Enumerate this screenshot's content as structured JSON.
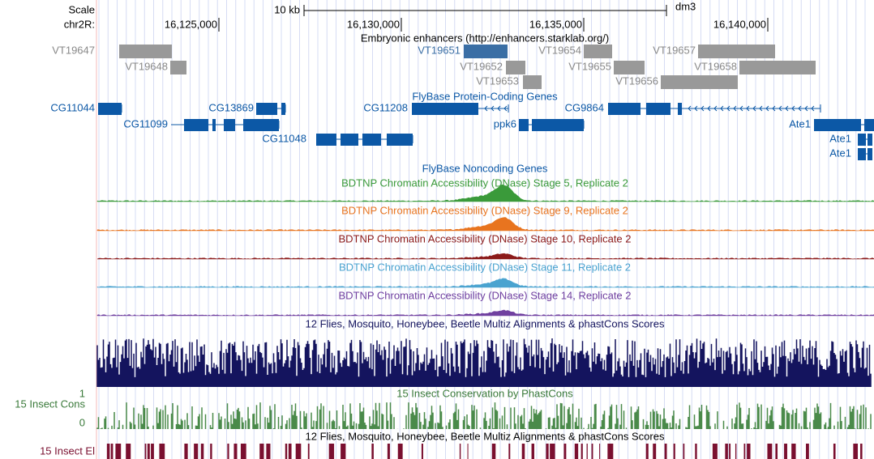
{
  "header": {
    "scale_label": "Scale",
    "scale_bar": "10 kb",
    "assembly": "dm3",
    "chrom": "chr2R:",
    "positions": [
      "16,125,000",
      "16,130,000",
      "16,135,000",
      "16,140,000"
    ]
  },
  "enhancers": {
    "title": "Embryonic enhancers (http://enhancers.starklab.org/)",
    "items": [
      "VT19647",
      "VT19648",
      "VT19651",
      "VT19652",
      "VT19653",
      "VT19654",
      "VT19655",
      "VT19656",
      "VT19657",
      "VT19658"
    ]
  },
  "genes": {
    "title": "FlyBase Protein-Coding Genes",
    "items": [
      "CG11044",
      "CG11099",
      "CG13869",
      "CG11048",
      "CG11208",
      "ppk6",
      "CG9864",
      "Ate1",
      "Ate1",
      "Ate1"
    ]
  },
  "noncoding": {
    "title": "FlyBase Noncoding Genes"
  },
  "dnase": [
    "BDTNP Chromatin Accessibility (DNase) Stage 5, Replicate 2",
    "BDTNP Chromatin Accessibility (DNase) Stage 9, Replicate 2",
    "BDTNP Chromatin Accessibility (DNase) Stage 10, Replicate 2",
    "BDTNP Chromatin Accessibility (DNase) Stage 11, Replicate 2",
    "BDTNP Chromatin Accessibility (DNase) Stage 14, Replicate 2"
  ],
  "multiz": {
    "title": "12 Flies, Mosquito, Honeybee, Beetle Multiz Alignments & phastCons Scores"
  },
  "phastcons": {
    "title": "15 Insect Conservation by PhastCons",
    "label": "15 Insect Cons",
    "axis_top": "1",
    "axis_bottom": "0"
  },
  "elements": {
    "title": "12 Flies, Mosquito, Honeybee, Beetle Multiz Alignments & phastCons Scores",
    "label": "15 Insect El"
  }
}
